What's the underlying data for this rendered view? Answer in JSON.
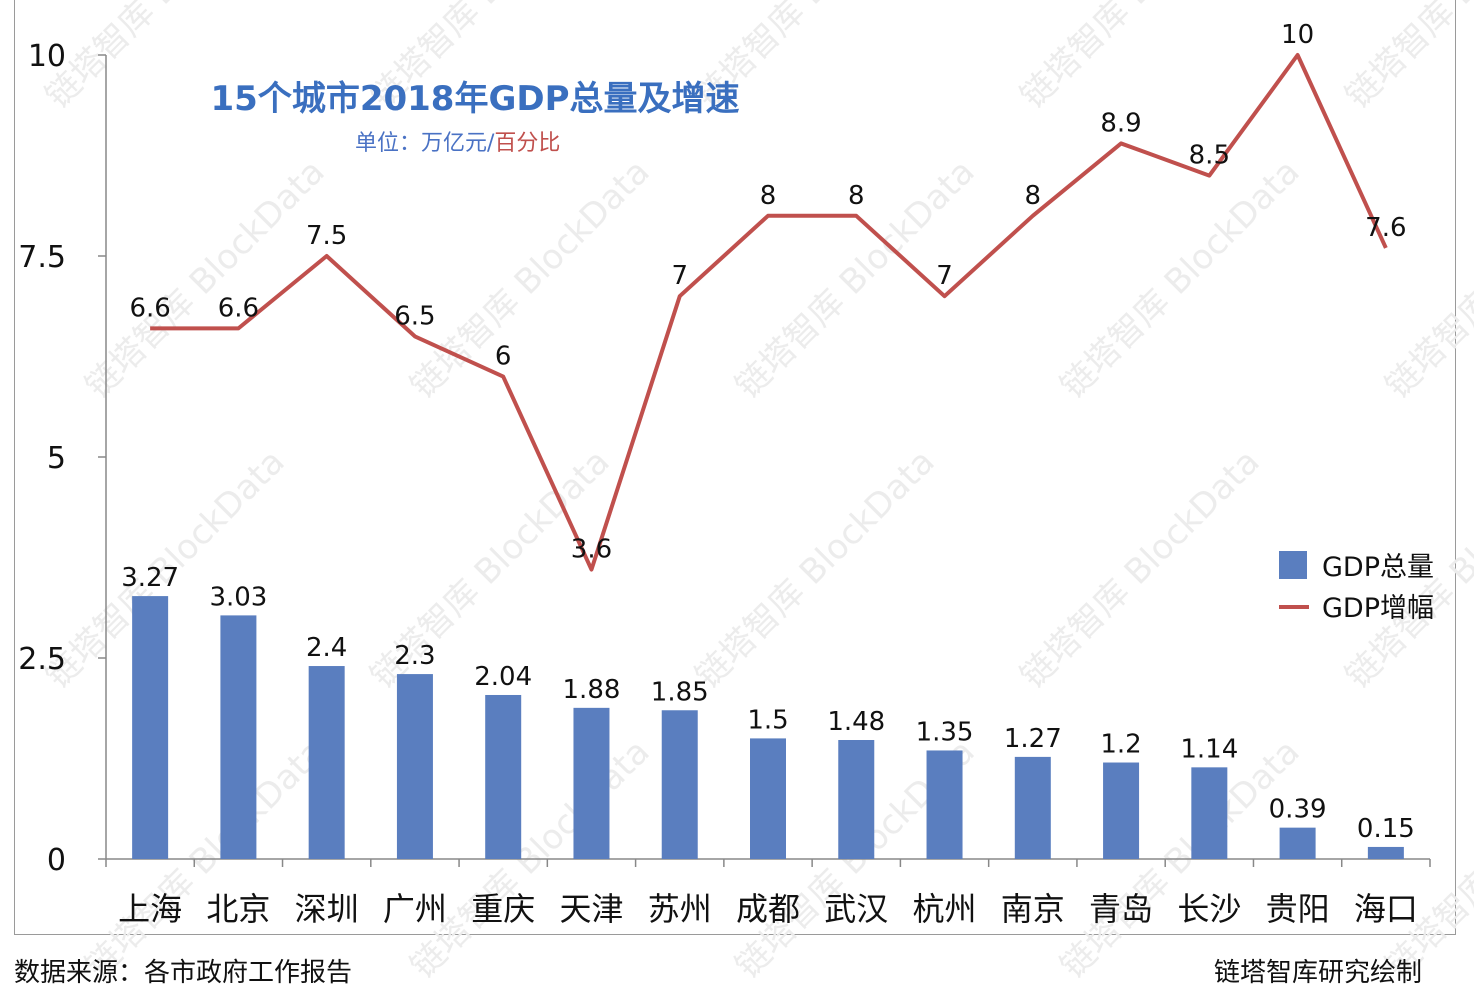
{
  "chart_data": {
    "type": "bar+line",
    "title": "15个城市2018年GDP总量及增速",
    "unit_label_part1": "单位：万亿元/",
    "unit_label_part2": "百分比",
    "categories": [
      "上海",
      "北京",
      "深圳",
      "广州",
      "重庆",
      "天津",
      "苏州",
      "成都",
      "武汉",
      "杭州",
      "南京",
      "青岛",
      "长沙",
      "贵阳",
      "海口"
    ],
    "series": [
      {
        "name": "GDP总量",
        "type": "bar",
        "color": "#5a7ebf",
        "values": [
          3.27,
          3.03,
          2.4,
          2.3,
          2.04,
          1.88,
          1.85,
          1.5,
          1.48,
          1.35,
          1.27,
          1.2,
          1.14,
          0.39,
          0.15
        ]
      },
      {
        "name": "GDP增幅",
        "type": "line",
        "color": "#c0504d",
        "values": [
          6.6,
          6.6,
          7.5,
          6.5,
          6,
          3.6,
          7,
          8,
          8,
          7,
          8,
          8.9,
          8.5,
          10,
          7.6
        ]
      }
    ],
    "yticks": [
      "0",
      "2.5",
      "5",
      "7.5",
      "10"
    ],
    "ylim": [
      0,
      10
    ],
    "legend_position": "right",
    "grid": false
  },
  "colors": {
    "title": "#3a6fbf",
    "unit_blue": "#4a72c4",
    "unit_red": "#c0504d",
    "axis": "#888888"
  },
  "watermark": "链塔智库 BlockData",
  "footer": {
    "source": "数据来源：各市政府工作报告",
    "credit": "链塔智库研究绘制"
  }
}
